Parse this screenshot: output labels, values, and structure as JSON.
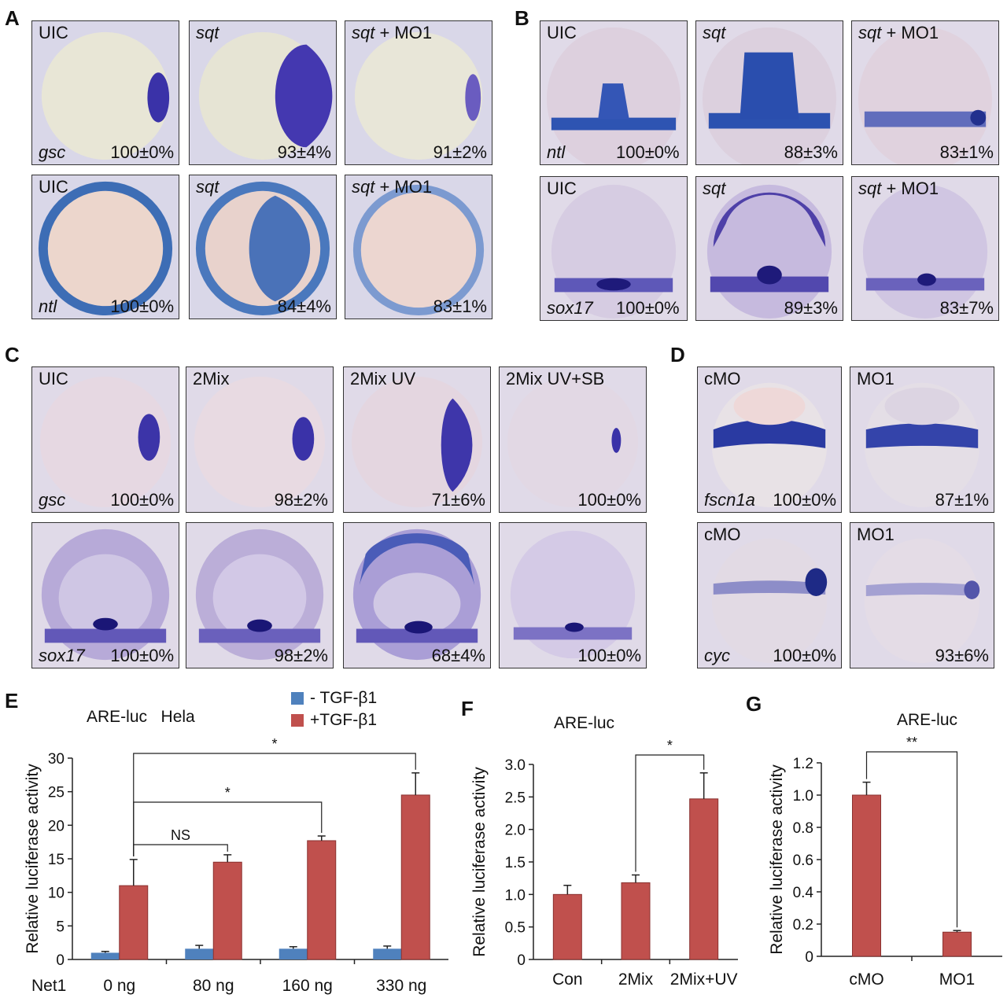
{
  "panels": {
    "A": {
      "letter": "A",
      "rows": [
        [
          {
            "label": "UIC",
            "gene": "gsc",
            "pct": "100±0%"
          },
          {
            "label_it": "sqt",
            "pct": "93±4%"
          },
          {
            "label_it": "sqt",
            "label_rest": " + MO1",
            "pct": "91±2%"
          }
        ],
        [
          {
            "label": "UIC",
            "gene": "ntl",
            "pct": "100±0%"
          },
          {
            "label_it": "sqt",
            "pct": "84±4%"
          },
          {
            "label_it": "sqt",
            "label_rest": " + MO1",
            "pct": "83±1%"
          }
        ]
      ]
    },
    "B": {
      "letter": "B",
      "rows": [
        [
          {
            "label": "UIC",
            "gene": "ntl",
            "pct": "100±0%"
          },
          {
            "label_it": "sqt",
            "pct": "88±3%"
          },
          {
            "label_it": "sqt",
            "label_rest": " + MO1",
            "pct": "83±1%"
          }
        ],
        [
          {
            "label": "UIC",
            "gene": "sox17",
            "pct": "100±0%"
          },
          {
            "label_it": "sqt",
            "pct": "89±3%"
          },
          {
            "label_it": "sqt",
            "label_rest": " + MO1",
            "pct": "83±7%"
          }
        ]
      ]
    },
    "C": {
      "letter": "C",
      "rows": [
        [
          {
            "label": "UIC",
            "gene": "gsc",
            "pct": "100±0%"
          },
          {
            "label": "2Mix",
            "pct": "98±2%"
          },
          {
            "label": "2Mix UV",
            "pct": "71±6%"
          },
          {
            "label": "2Mix UV+SB",
            "pct": "100±0%"
          }
        ],
        [
          {
            "gene": "sox17",
            "pct": "100±0%"
          },
          {
            "pct": "98±2%"
          },
          {
            "pct": "68±4%"
          },
          {
            "pct": "100±0%"
          }
        ]
      ]
    },
    "D": {
      "letter": "D",
      "rows": [
        [
          {
            "label": "cMO",
            "gene": "fscn1a",
            "pct": "100±0%"
          },
          {
            "label": "MO1",
            "pct": "87±1%"
          }
        ],
        [
          {
            "label": "cMO",
            "gene": "cyc",
            "pct": "100±0%"
          },
          {
            "label": "MO1",
            "pct": "93±6%"
          }
        ]
      ]
    },
    "E": {
      "letter": "E"
    },
    "F": {
      "letter": "F"
    },
    "G": {
      "letter": "G"
    }
  },
  "colors": {
    "stain": "#2b2a9e",
    "bar_red": "#c0504d",
    "bar_blue": "#4f81bd"
  },
  "chart_data": [
    {
      "id": "E",
      "type": "bar",
      "title": "ARE-luc",
      "subtitle": "Hela",
      "ylabel": "Relative luciferase activity",
      "row_label": "Net1",
      "categories": [
        "0 ng",
        "80 ng",
        "160 ng",
        "330 ng"
      ],
      "ylim": [
        0,
        30
      ],
      "yticks": [
        0,
        5,
        10,
        15,
        20,
        25,
        30
      ],
      "series": [
        {
          "name": "- TGF-β1",
          "color": "#4f81bd",
          "values": [
            1.0,
            1.6,
            1.6,
            1.6
          ],
          "errors": [
            0.2,
            0.5,
            0.3,
            0.4
          ]
        },
        {
          "name": "+TGF-β1",
          "color": "#c0504d",
          "values": [
            11.0,
            14.5,
            17.7,
            24.5
          ],
          "errors": [
            3.9,
            1.1,
            0.7,
            3.3
          ]
        }
      ],
      "comparisons": [
        {
          "from": 0,
          "to": 1,
          "label": "NS"
        },
        {
          "from": 0,
          "to": 2,
          "label": "*"
        },
        {
          "from": 0,
          "to": 3,
          "label": "*"
        }
      ]
    },
    {
      "id": "F",
      "type": "bar",
      "title": "ARE-luc",
      "ylabel": "Relative luciferase activity",
      "categories": [
        "Con",
        "2Mix",
        "2Mix+UV"
      ],
      "ylim": [
        0,
        3.0
      ],
      "yticks": [
        "0",
        "0.5",
        "1.0",
        "1.5",
        "2.0",
        "2.5",
        "3.0"
      ],
      "series": [
        {
          "color": "#c0504d",
          "values": [
            1.0,
            1.18,
            2.47
          ],
          "errors": [
            0.14,
            0.12,
            0.4
          ]
        }
      ],
      "comparisons": [
        {
          "from": 1,
          "to": 2,
          "label": "*"
        }
      ]
    },
    {
      "id": "G",
      "type": "bar",
      "title": "ARE-luc",
      "ylabel": "Relative luciferase activity",
      "categories": [
        "cMO",
        "MO1"
      ],
      "ylim": [
        0,
        1.2
      ],
      "yticks": [
        "0",
        "0.2",
        "0.4",
        "0.6",
        "0.8",
        "1.0",
        "1.2"
      ],
      "series": [
        {
          "color": "#c0504d",
          "values": [
            1.0,
            0.15
          ],
          "errors": [
            0.08,
            0.01
          ]
        }
      ],
      "comparisons": [
        {
          "from": 0,
          "to": 1,
          "label": "**"
        }
      ]
    }
  ]
}
